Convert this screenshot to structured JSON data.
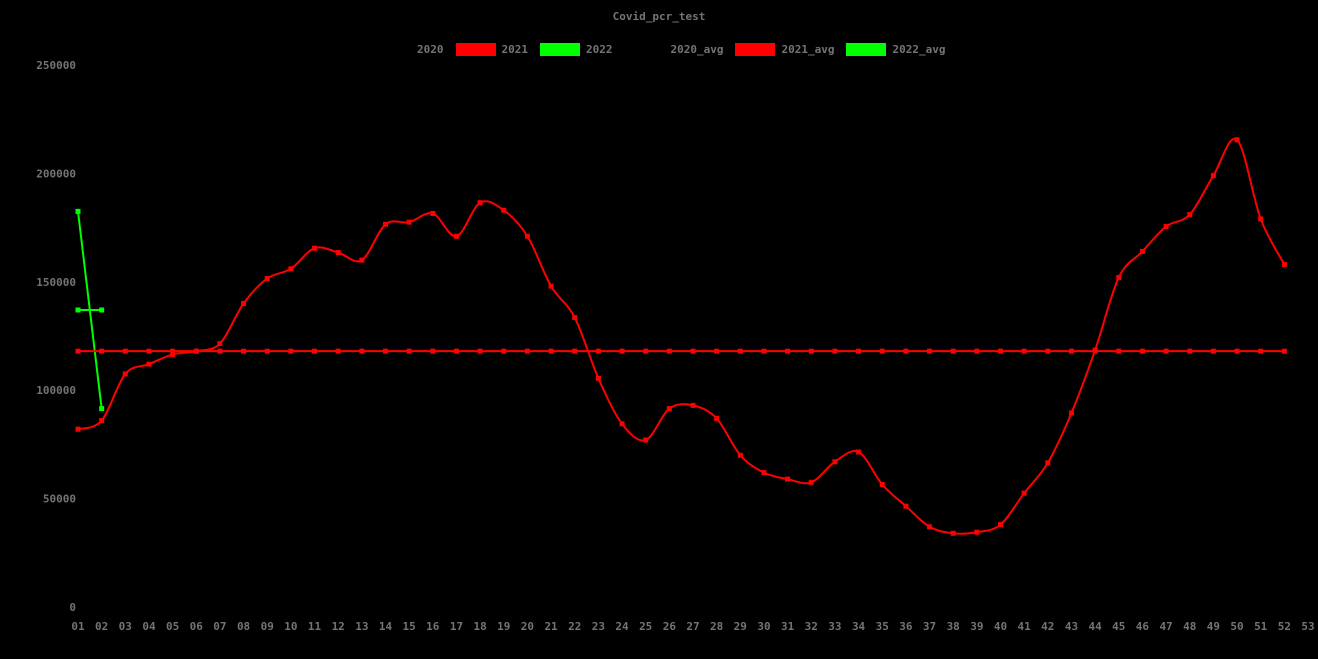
{
  "title": "Covid_pcr_test",
  "colors": {
    "background": "#000000",
    "label_text": "#747474",
    "series_2020": "#000000",
    "series_2021": "#ff0000",
    "series_2022": "#00ff00"
  },
  "legend": {
    "items": [
      {
        "label": "2020",
        "color": "#000000"
      },
      {
        "label": "2021",
        "color": "#ff0000"
      },
      {
        "label": "2022",
        "color": "#00ff00"
      },
      {
        "label": "2020_avg",
        "color": "#000000"
      },
      {
        "label": "2021_avg",
        "color": "#ff0000"
      },
      {
        "label": "2022_avg",
        "color": "#00ff00"
      }
    ]
  },
  "chart_data": {
    "type": "line",
    "title": "Covid_pcr_test",
    "xlabel": "",
    "ylabel": "",
    "grid": false,
    "legend_position": "top",
    "xlim": [
      1,
      53
    ],
    "ylim": [
      0,
      250000
    ],
    "x_tick_labels": [
      "01",
      "02",
      "03",
      "04",
      "05",
      "06",
      "07",
      "08",
      "09",
      "10",
      "11",
      "12",
      "13",
      "14",
      "15",
      "16",
      "17",
      "18",
      "19",
      "20",
      "21",
      "22",
      "23",
      "24",
      "25",
      "26",
      "27",
      "28",
      "29",
      "30",
      "31",
      "32",
      "33",
      "34",
      "35",
      "36",
      "37",
      "38",
      "39",
      "40",
      "41",
      "42",
      "43",
      "44",
      "45",
      "46",
      "47",
      "48",
      "49",
      "50",
      "51",
      "52",
      "53"
    ],
    "y_tick_values": [
      0,
      50000,
      100000,
      150000,
      200000,
      250000
    ],
    "y_tick_labels": [
      "0",
      "50000",
      "100000",
      "150000",
      "200000",
      "250000"
    ],
    "series": [
      {
        "name": "2020",
        "color": "#000000",
        "start_week": 1,
        "values": []
      },
      {
        "name": "2021",
        "color": "#ff0000",
        "start_week": 1,
        "values": [
          82000,
          86000,
          107500,
          112000,
          116500,
          118000,
          121500,
          140000,
          151500,
          156000,
          165500,
          163500,
          160000,
          176500,
          177500,
          181500,
          171000,
          186500,
          183000,
          171000,
          148000,
          133500,
          105500,
          84500,
          77000,
          91500,
          93000,
          87000,
          70000,
          62000,
          59000,
          57500,
          67000,
          71500,
          56500,
          46500,
          37000,
          34000,
          34500,
          38000,
          52500,
          66500,
          89500,
          118500,
          152000,
          164000,
          175500,
          181000,
          199000,
          215500,
          179000,
          158000
        ]
      },
      {
        "name": "2022",
        "color": "#00ff00",
        "start_week": 1,
        "values": [
          182500,
          91500
        ]
      },
      {
        "name": "2020_avg",
        "color": "#000000",
        "week_span": []
      },
      {
        "name": "2021_avg",
        "color": "#ff0000",
        "avg_value": 118000,
        "week_span": [
          1,
          52
        ]
      },
      {
        "name": "2022_avg",
        "color": "#00ff00",
        "avg_value": 137000,
        "week_span": [
          1,
          2
        ]
      }
    ]
  }
}
